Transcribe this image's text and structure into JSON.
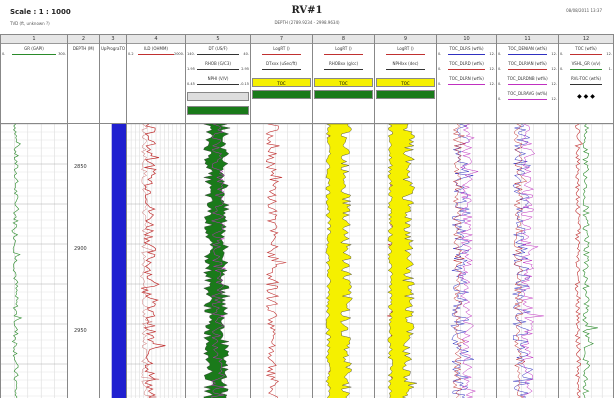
{
  "header": {
    "scale": "Scale : 1 : 1000",
    "well": "RV#1",
    "depth_range": "DEPTH (2789.9234 - 2998.9634)",
    "tvd_note": "TVD (ft, unknown ?)",
    "date": "08/08/2011 13:37"
  },
  "tracks": [
    {
      "number": "1",
      "curves": [
        {
          "name": "GR (GAPI)",
          "lo": "0.",
          "hi": "300.",
          "color": "#2a8a2a"
        }
      ]
    },
    {
      "number": "2",
      "curves": [
        {
          "name": "DEPTH (M)",
          "lo": "",
          "hi": "",
          "color": "#333333"
        }
      ]
    },
    {
      "number": "3",
      "curves": [
        {
          "name": "UpPrograTOC",
          "lo": "",
          "hi": "",
          "color": "#333333"
        }
      ]
    },
    {
      "number": "4",
      "curves": [
        {
          "name": "ILD (OHMM)",
          "lo": "0.2",
          "hi": "2000.",
          "color": "#c03030"
        }
      ]
    },
    {
      "number": "5",
      "curves": [
        {
          "name": "DT (US/F)",
          "lo": "140.",
          "hi": "40.",
          "color": "#333333"
        },
        {
          "name": "RHOB (G/C3)",
          "lo": "1.95",
          "hi": "2.95",
          "color": "#333333"
        },
        {
          "name": "NPHI (V/V)",
          "lo": "0.45",
          "hi": "-0.15",
          "color": "#333333"
        }
      ]
    },
    {
      "number": "7",
      "curves": [
        {
          "name": "LogRT ()",
          "lo": "",
          "hi": "",
          "color": "#c03030"
        },
        {
          "name": "DTxxx (uSec/ft)",
          "lo": "",
          "hi": "",
          "color": "#333333"
        }
      ],
      "fill": "TOC"
    },
    {
      "number": "8",
      "curves": [
        {
          "name": "LogRT ()",
          "lo": "",
          "hi": "",
          "color": "#c03030"
        },
        {
          "name": "RHOBxx (g/cc)",
          "lo": "",
          "hi": "",
          "color": "#333333"
        }
      ],
      "fill": "TOC"
    },
    {
      "number": "9",
      "curves": [
        {
          "name": "LogRT ()",
          "lo": "",
          "hi": "",
          "color": "#c03030"
        },
        {
          "name": "NPHIxx (dec)",
          "lo": "",
          "hi": "",
          "color": "#333333"
        }
      ],
      "fill": "TOC"
    },
    {
      "number": "10",
      "curves": [
        {
          "name": "TOC_DLRS (wt%)",
          "lo": "0.",
          "hi": "12.",
          "color": "#3030c0"
        },
        {
          "name": "TOC_DLRD (wt%)",
          "lo": "0.",
          "hi": "12.",
          "color": "#c03030"
        },
        {
          "name": "TOC_DLRN (wt%)",
          "lo": "0.",
          "hi": "12.",
          "color": "#c030c0"
        }
      ]
    },
    {
      "number": "11",
      "curves": [
        {
          "name": "TOC_DENIAN (wt%)",
          "lo": "0.",
          "hi": "12.",
          "color": "#3030c0"
        },
        {
          "name": "TOC_DLRIAN (wt%)",
          "lo": "0.",
          "hi": "12.",
          "color": "#c03030"
        },
        {
          "name": "TOC_DLRDNB (wt%)",
          "lo": "0.",
          "hi": "12.",
          "color": "#c030c0"
        },
        {
          "name": "TOC_DLRAVG (wt%)",
          "lo": "0.",
          "hi": "12.",
          "color": "#c030c0"
        }
      ]
    },
    {
      "number": "12",
      "curves": [
        {
          "name": "TOC (wt%)",
          "lo": "0.",
          "hi": "12.",
          "color": "#c03030"
        },
        {
          "name": "VSHL_GR (v/v)",
          "lo": "0.",
          "hi": "1.",
          "color": "#2a8a2a"
        },
        {
          "name": "RVL-TOC (wt%)",
          "lo": "",
          "hi": "",
          "color": "#333333"
        }
      ]
    }
  ],
  "depth_labels": [
    "2850",
    "2900",
    "2950"
  ],
  "colors": {
    "green": "#1a7a1a",
    "yellow": "#f5f000",
    "blue": "#2020d0",
    "red": "#c02020"
  }
}
